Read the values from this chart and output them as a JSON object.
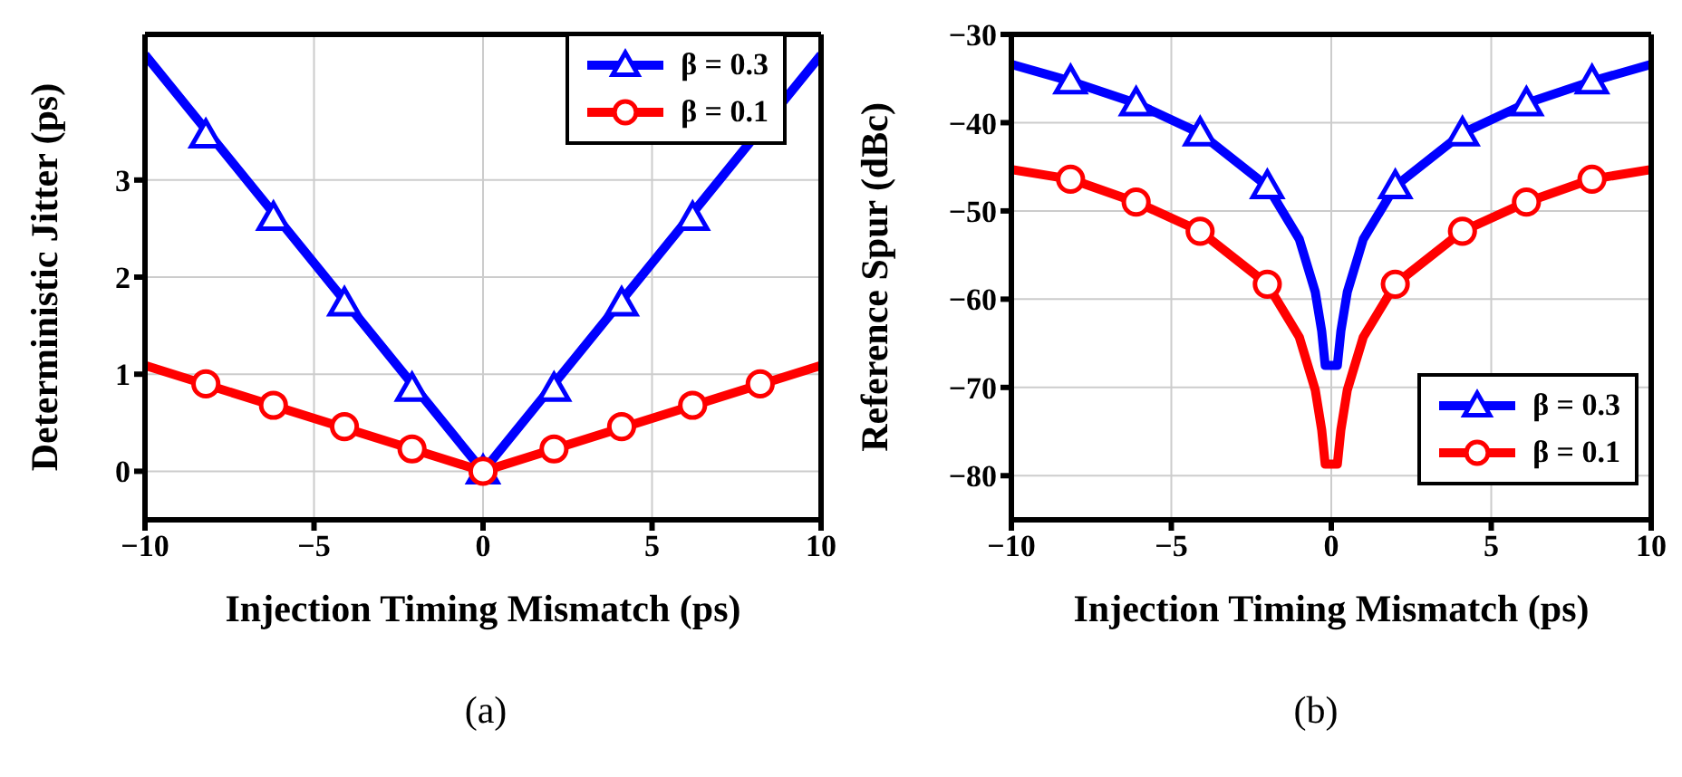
{
  "chart_data": [
    {
      "type": "line",
      "xlabel": "Injection Timing Mismatch (ps)",
      "ylabel": "Deterministic Jitter (ps)",
      "xlim": [
        -10,
        10
      ],
      "ylim": [
        -0.5,
        4.5
      ],
      "xticks": [
        -10,
        -5,
        0,
        5,
        10
      ],
      "yticks": [
        0,
        1,
        2,
        3
      ],
      "grid": true,
      "legend": "top right",
      "line_style": "solid",
      "annotations": [
        "(a)"
      ],
      "series": [
        {
          "color": "#0000ff",
          "x": [
            -10,
            0,
            10
          ],
          "values": [
            4.29,
            0,
            4.29
          ]
        },
        {
          "color": "#ff0000",
          "x": [
            -10,
            0,
            10
          ],
          "values": [
            1.09,
            0,
            1.09
          ]
        },
        {
          "type": "scatter",
          "name": "β = 0.3",
          "color": "#0000ff",
          "marker": "triangle",
          "x": [
            -8.2,
            -6.2,
            -4.1,
            -2.1,
            0,
            2.1,
            4.1,
            6.2
          ],
          "values": [
            3.46,
            2.61,
            1.73,
            0.85,
            0,
            0.85,
            1.73,
            2.61
          ]
        },
        {
          "type": "scatter",
          "name": "β = 0.1",
          "color": "#ff0000",
          "marker": "circle",
          "x": [
            -8.2,
            -6.2,
            -4.1,
            -2.1,
            0,
            2.1,
            4.1,
            6.2,
            8.2
          ],
          "values": [
            0.9,
            0.68,
            0.46,
            0.23,
            0,
            0.23,
            0.46,
            0.68,
            0.9
          ]
        }
      ]
    },
    {
      "type": "line",
      "xlabel": "Injection Timing Mismatch (ps)",
      "ylabel": "Reference Spur (dBc)",
      "xlim": [
        -10,
        10
      ],
      "ylim": [
        -85,
        -30
      ],
      "xticks": [
        -10,
        -5,
        0,
        5,
        10
      ],
      "yticks": [
        -80,
        -70,
        -60,
        -50,
        -40,
        -30
      ],
      "grid": true,
      "legend": "bottom right",
      "line_style": "solid",
      "annotations": [
        "(b)"
      ],
      "series": [
        {
          "color": "#0000ff",
          "x": [
            -10,
            -8.15,
            -6.1,
            -4.1,
            -2.0,
            -1,
            -0.5,
            -0.3,
            -0.19,
            0,
            0.19,
            0.3,
            0.5,
            1,
            2.0,
            4.1,
            6.1,
            8.15,
            10
          ],
          "values": [
            -33.4,
            -35.3,
            -37.8,
            -41.2,
            -47.2,
            -53.2,
            -59.2,
            -63.6,
            -67.5,
            -67.5,
            -67.5,
            -63.6,
            -59.2,
            -53.2,
            -47.2,
            -41.2,
            -37.8,
            -35.3,
            -33.4
          ]
        },
        {
          "color": "#ff0000",
          "x": [
            -10,
            -8.15,
            -6.1,
            -4.1,
            -2.0,
            -1,
            -0.5,
            -0.3,
            -0.19,
            0,
            0.19,
            0.3,
            0.5,
            1,
            2.0,
            4.1,
            6.1,
            8.15,
            10
          ],
          "values": [
            -45.3,
            -46.4,
            -49.0,
            -52.3,
            -58.3,
            -64.3,
            -70.3,
            -74.8,
            -78.7,
            -78.7,
            -78.7,
            -74.8,
            -70.3,
            -64.3,
            -58.3,
            -52.3,
            -49.0,
            -46.4,
            -45.3
          ]
        },
        {
          "type": "scatter",
          "name": "β = 0.3",
          "color": "#0000ff",
          "marker": "triangle",
          "x": [
            -8.15,
            -6.1,
            -4.1,
            -2.0,
            2.0,
            4.1,
            6.1,
            8.15
          ],
          "values": [
            -35.3,
            -37.8,
            -41.2,
            -47.2,
            -47.2,
            -41.2,
            -37.8,
            -35.3
          ]
        },
        {
          "type": "scatter",
          "name": "β = 0.1",
          "color": "#ff0000",
          "marker": "circle",
          "x": [
            -8.15,
            -6.1,
            -4.1,
            -2.0,
            2.0,
            4.1,
            6.1,
            8.15
          ],
          "values": [
            -46.4,
            -49.0,
            -52.3,
            -58.3,
            -58.3,
            -52.3,
            -49.0,
            -46.4
          ]
        }
      ]
    }
  ]
}
